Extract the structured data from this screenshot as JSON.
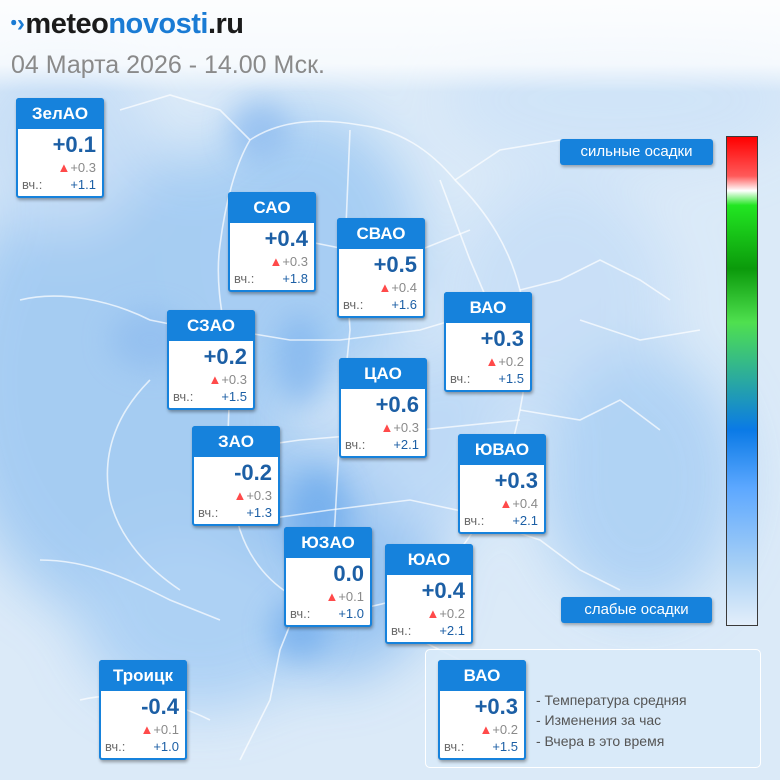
{
  "header": {
    "logo_a": "meteo",
    "logo_b": "novosti",
    "logo_c": ".ru",
    "date": "04 Марта 2026 - 14.00 Мск."
  },
  "colors": {
    "accent": "#1682dc",
    "temp_text": "#1c5fa5",
    "delta_triangle": "#ff4a4a"
  },
  "districts": [
    {
      "name": "ЗелАО",
      "temp": "+0.1",
      "delta": "+0.3",
      "yesterday_label": "вч.:",
      "yesterday": "+1.1"
    },
    {
      "name": "САО",
      "temp": "+0.4",
      "delta": "+0.3",
      "yesterday_label": "вч.:",
      "yesterday": "+1.8"
    },
    {
      "name": "СВАО",
      "temp": "+0.5",
      "delta": "+0.4",
      "yesterday_label": "вч.:",
      "yesterday": "+1.6"
    },
    {
      "name": "ВАО",
      "temp": "+0.3",
      "delta": "+0.2",
      "yesterday_label": "вч.:",
      "yesterday": "+1.5"
    },
    {
      "name": "СЗАО",
      "temp": "+0.2",
      "delta": "+0.3",
      "yesterday_label": "вч.:",
      "yesterday": "+1.5"
    },
    {
      "name": "ЦАО",
      "temp": "+0.6",
      "delta": "+0.3",
      "yesterday_label": "вч.:",
      "yesterday": "+2.1"
    },
    {
      "name": "ЗАО",
      "temp": "-0.2",
      "delta": "+0.3",
      "yesterday_label": "вч.:",
      "yesterday": "+1.3"
    },
    {
      "name": "ЮВАО",
      "temp": "+0.3",
      "delta": "+0.4",
      "yesterday_label": "вч.:",
      "yesterday": "+2.1"
    },
    {
      "name": "ЮЗАО",
      "temp": "0.0",
      "delta": "+0.1",
      "yesterday_label": "вч.:",
      "yesterday": "+1.0"
    },
    {
      "name": "ЮАО",
      "temp": "+0.4",
      "delta": "+0.2",
      "yesterday_label": "вч.:",
      "yesterday": "+2.1"
    },
    {
      "name": "Троицк",
      "temp": "-0.4",
      "delta": "+0.1",
      "yesterday_label": "вч.:",
      "yesterday": "+1.0"
    }
  ],
  "scale": {
    "top_label": "сильные осадки",
    "bottom_label": "слабые осадки"
  },
  "legend": {
    "sample": {
      "name": "ВАО",
      "temp": "+0.3",
      "delta": "+0.2",
      "yesterday_label": "вч.:",
      "yesterday": "+1.5"
    },
    "items": [
      "- Температура средняя",
      "- Изменения за час",
      "- Вчера в это время"
    ]
  }
}
